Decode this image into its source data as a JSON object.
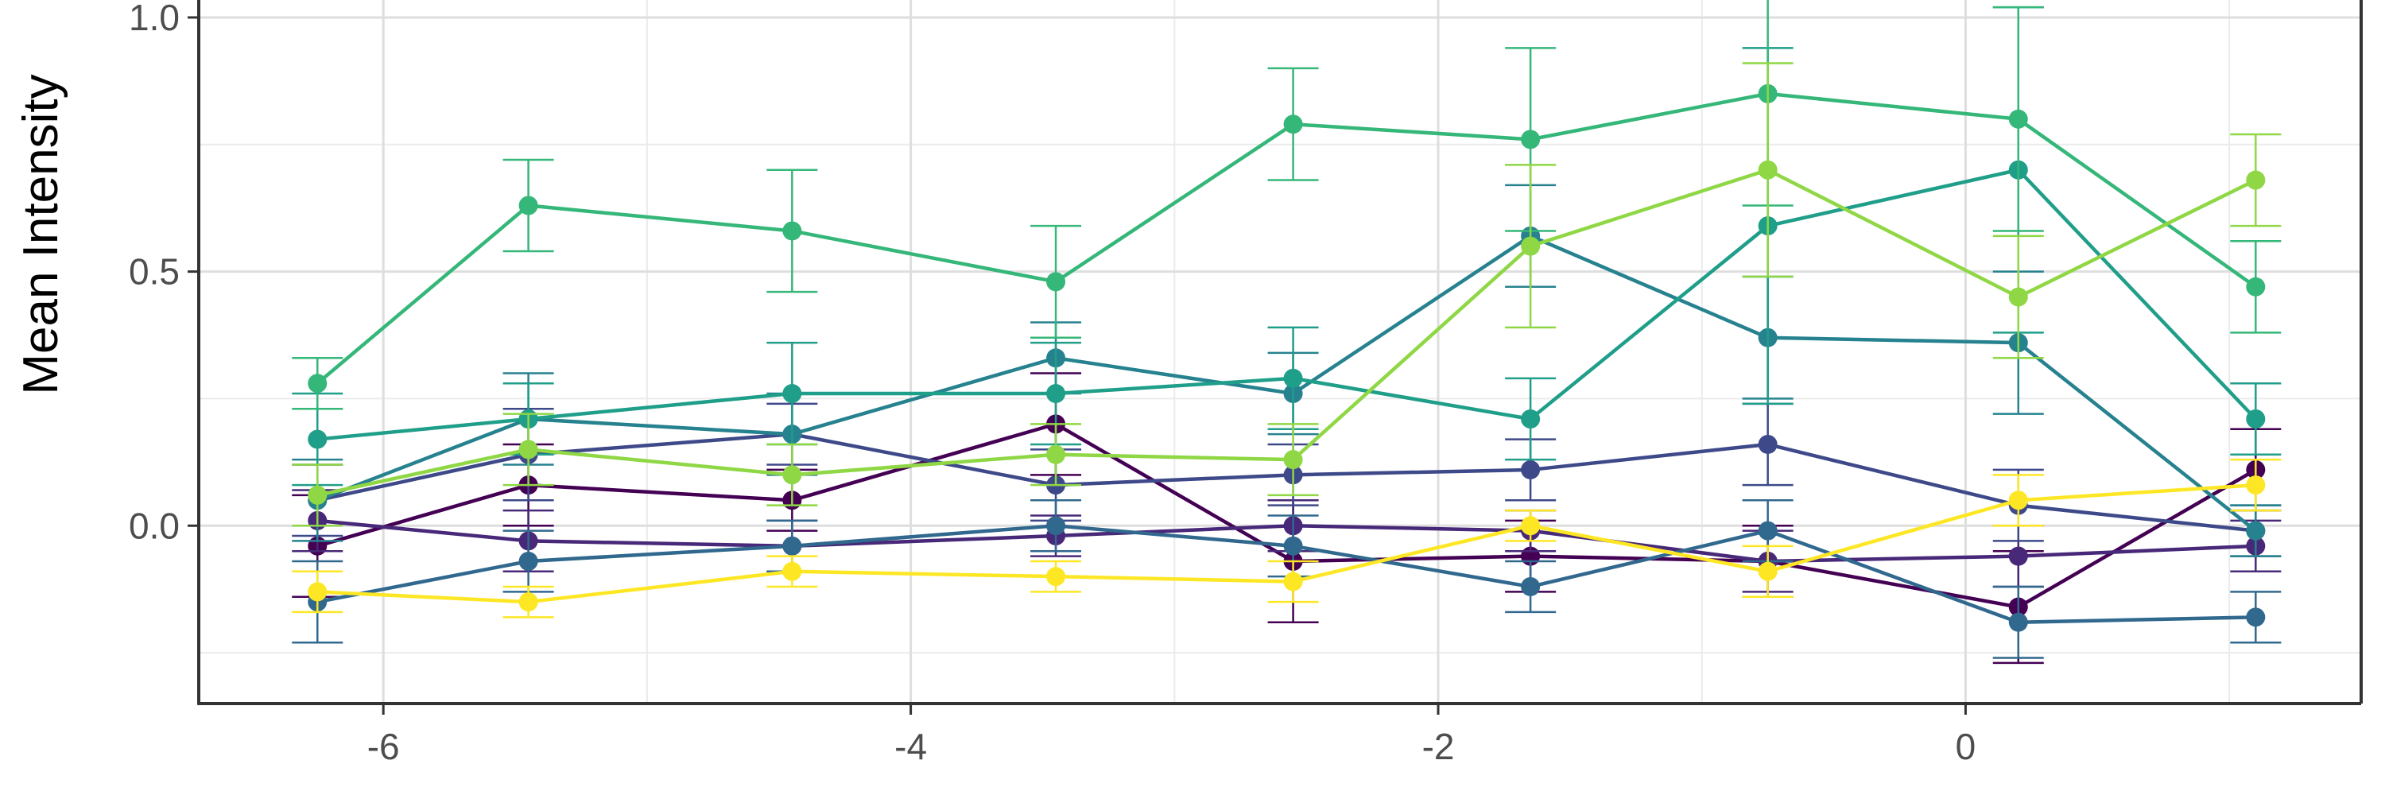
{
  "chart_data": {
    "type": "line",
    "title": "",
    "xlabel": "",
    "ylabel": "Mean Intensity",
    "xlim": [
      -6.7,
      1.5
    ],
    "ylim": [
      -0.35,
      1.05
    ],
    "x_ticks": [
      -6,
      -4,
      -2,
      0
    ],
    "x_tick_labels": [
      "-6",
      "-4",
      "-2",
      "0"
    ],
    "y_ticks": [
      0.0,
      0.5,
      1.0
    ],
    "y_tick_labels": [
      "0.0",
      "0.5",
      "1.0"
    ],
    "grid": true,
    "legend": "none",
    "x": [
      -6.25,
      -5.45,
      -4.45,
      -3.45,
      -2.55,
      -1.65,
      -0.75,
      0.2,
      1.1
    ],
    "series": [
      {
        "color": "#440154",
        "values": [
          -0.04,
          0.08,
          0.05,
          0.2,
          -0.07,
          -0.06,
          -0.07,
          -0.16,
          0.11
        ],
        "errors": [
          0.1,
          0.08,
          0.06,
          0.1,
          0.12,
          0.07,
          0.07,
          0.11,
          0.08
        ]
      },
      {
        "color": "#482878",
        "values": [
          0.01,
          -0.03,
          -0.04,
          -0.02,
          0.0,
          -0.01,
          -0.07,
          -0.06,
          -0.04
        ],
        "errors": [
          0.06,
          0.06,
          0.05,
          0.04,
          0.05,
          0.04,
          0.06,
          0.06,
          0.05
        ]
      },
      {
        "color": "#3e4989",
        "values": [
          0.05,
          0.14,
          0.18,
          0.08,
          0.1,
          0.11,
          0.16,
          0.04,
          -0.01
        ],
        "errors": [
          0.07,
          0.09,
          0.06,
          0.07,
          0.06,
          0.06,
          0.08,
          0.07,
          0.05
        ]
      },
      {
        "color": "#31688e",
        "values": [
          -0.15,
          -0.07,
          -0.04,
          0.0,
          -0.04,
          -0.12,
          -0.01,
          -0.19,
          -0.18
        ],
        "errors": [
          0.08,
          0.06,
          0.05,
          0.05,
          0.06,
          0.05,
          0.06,
          0.07,
          0.05
        ]
      },
      {
        "color": "#26828e",
        "values": [
          0.05,
          0.21,
          0.18,
          0.33,
          0.26,
          0.57,
          0.37,
          0.36,
          -0.01
        ],
        "errors": [
          0.08,
          0.09,
          0.08,
          0.07,
          0.08,
          0.1,
          0.12,
          0.14,
          0.05
        ]
      },
      {
        "color": "#1f9e89",
        "values": [
          0.17,
          0.21,
          0.26,
          0.26,
          0.29,
          0.21,
          0.59,
          0.7,
          0.21
        ],
        "errors": [
          0.09,
          0.07,
          0.1,
          0.1,
          0.1,
          0.08,
          0.35,
          0.32,
          0.07
        ]
      },
      {
        "color": "#35b779",
        "values": [
          0.28,
          0.63,
          0.58,
          0.48,
          0.79,
          0.76,
          0.85,
          0.8,
          0.47
        ],
        "errors": [
          0.05,
          0.09,
          0.12,
          0.11,
          0.11,
          0.18,
          0.22,
          0.22,
          0.09
        ]
      },
      {
        "color": "#8fd744",
        "values": [
          0.06,
          0.15,
          0.1,
          0.14,
          0.13,
          0.55,
          0.7,
          0.45,
          0.68
        ],
        "errors": [
          0.06,
          0.07,
          0.06,
          0.06,
          0.07,
          0.16,
          0.21,
          0.12,
          0.09
        ]
      },
      {
        "color": "#fde725",
        "values": [
          -0.13,
          -0.15,
          -0.09,
          -0.1,
          -0.11,
          0.0,
          -0.09,
          0.05,
          0.08
        ],
        "errors": [
          0.04,
          0.03,
          0.03,
          0.03,
          0.04,
          0.03,
          0.05,
          0.05,
          0.05
        ]
      }
    ]
  }
}
